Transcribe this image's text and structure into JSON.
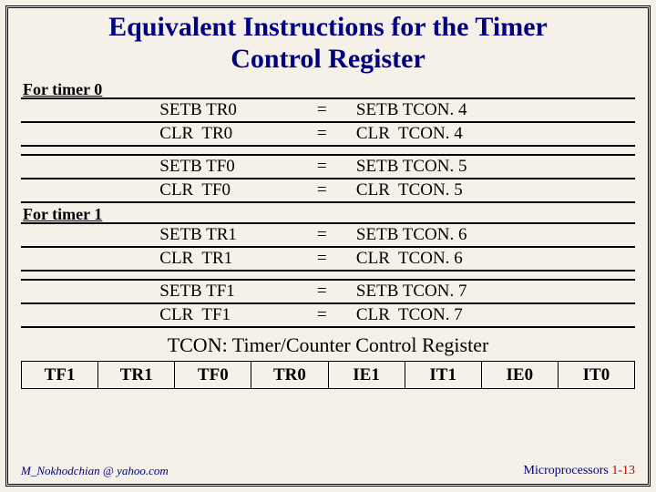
{
  "title_line1": "Equivalent Instructions for the Timer",
  "title_line2": "Control Register",
  "sections": [
    {
      "label": "For timer 0",
      "groups": [
        [
          {
            "left": "SETB TR0",
            "eq": "=",
            "right": "SETB TCON. 4"
          },
          {
            "left": "CLR  TR0",
            "eq": "=",
            "right": "CLR  TCON. 4"
          }
        ],
        [
          {
            "left": "SETB TF0",
            "eq": "=",
            "right": "SETB TCON. 5"
          },
          {
            "left": "CLR  TF0",
            "eq": "=",
            "right": "CLR  TCON. 5"
          }
        ]
      ]
    },
    {
      "label": "For timer 1",
      "groups": [
        [
          {
            "left": "SETB TR1",
            "eq": "=",
            "right": "SETB TCON. 6"
          },
          {
            "left": "CLR  TR1",
            "eq": "=",
            "right": "CLR  TCON. 6"
          }
        ],
        [
          {
            "left": "SETB TF1",
            "eq": "=",
            "right": "SETB TCON. 7"
          },
          {
            "left": "CLR  TF1",
            "eq": "=",
            "right": "CLR  TCON. 7"
          }
        ]
      ]
    }
  ],
  "caption": "TCON: Timer/Counter Control Register",
  "register_bits": [
    "TF1",
    "TR1",
    "TF0",
    "TR0",
    "IE1",
    "IT1",
    "IE0",
    "IT0"
  ],
  "footer_left": "M_Nokhodchian @ yahoo.com",
  "footer_right_text": "Microprocessors ",
  "footer_right_page": "1-13",
  "colors": {
    "background": "#f5f0e8",
    "title": "#000080",
    "footer": "#000080",
    "pagenum": "#c00000",
    "border": "#000000"
  }
}
